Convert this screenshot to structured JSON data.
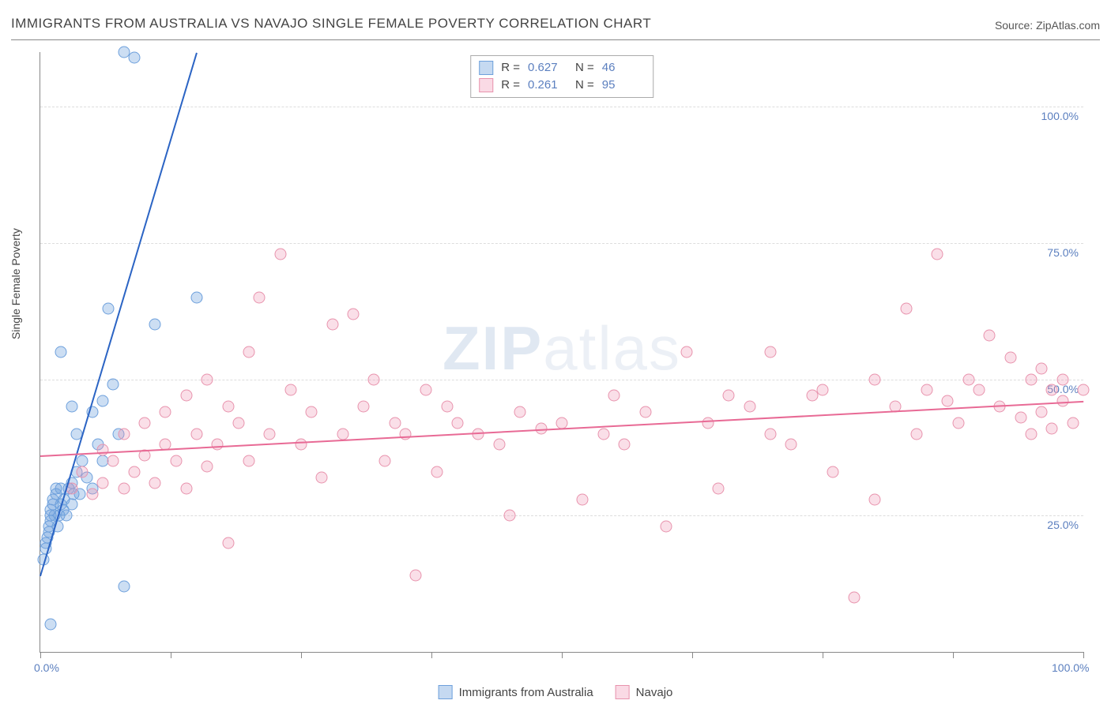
{
  "title": "IMMIGRANTS FROM AUSTRALIA VS NAVAJO SINGLE FEMALE POVERTY CORRELATION CHART",
  "source_label": "Source: ",
  "source_value": "ZipAtlas.com",
  "watermark": {
    "part1": "ZIP",
    "part2": "atlas"
  },
  "chart": {
    "type": "scatter",
    "background_color": "#ffffff",
    "grid_color": "#dddddd",
    "axis_color": "#888888",
    "xlim": [
      0,
      100
    ],
    "ylim": [
      0,
      110
    ],
    "y_gridlines": [
      25,
      50,
      75,
      100
    ],
    "y_tick_labels": [
      "25.0%",
      "50.0%",
      "75.0%",
      "100.0%"
    ],
    "x_ticks": [
      0,
      12.5,
      25,
      37.5,
      50,
      62.5,
      75,
      87.5,
      100
    ],
    "x_tick_labels": {
      "0": "0.0%",
      "100": "100.0%"
    },
    "y_axis_title": "Single Female Poverty",
    "label_color": "#5b7fbf",
    "label_fontsize": 14,
    "marker_radius": 7.5,
    "marker_opacity": 0.35,
    "series": [
      {
        "name": "Immigrants from Australia",
        "color_fill": "rgba(110,160,220,0.35)",
        "color_stroke": "#6ea0dc",
        "regression_color": "#2b64c4",
        "R": 0.627,
        "N": 46,
        "regression": {
          "x1": 0,
          "y1": 14,
          "x2": 15,
          "y2": 110
        },
        "points": [
          [
            0.3,
            17
          ],
          [
            0.5,
            19
          ],
          [
            0.5,
            20
          ],
          [
            0.7,
            21
          ],
          [
            0.8,
            22
          ],
          [
            0.8,
            23
          ],
          [
            1.0,
            24
          ],
          [
            1.0,
            25
          ],
          [
            1.0,
            26
          ],
          [
            1.2,
            27
          ],
          [
            1.2,
            28
          ],
          [
            1.4,
            25
          ],
          [
            1.5,
            29
          ],
          [
            1.5,
            30
          ],
          [
            1.7,
            23
          ],
          [
            1.8,
            25
          ],
          [
            2.0,
            27
          ],
          [
            2.0,
            30
          ],
          [
            2.2,
            26
          ],
          [
            2.3,
            28
          ],
          [
            2.5,
            25
          ],
          [
            2.7,
            30
          ],
          [
            3.0,
            27
          ],
          [
            3.0,
            31
          ],
          [
            3.2,
            29
          ],
          [
            3.5,
            33
          ],
          [
            3.5,
            40
          ],
          [
            3.8,
            29
          ],
          [
            4.0,
            35
          ],
          [
            4.5,
            32
          ],
          [
            5.0,
            30
          ],
          [
            5.0,
            44
          ],
          [
            5.5,
            38
          ],
          [
            6.0,
            35
          ],
          [
            6.0,
            46
          ],
          [
            6.5,
            63
          ],
          [
            7.0,
            49
          ],
          [
            7.5,
            40
          ],
          [
            8.0,
            12
          ],
          [
            2.0,
            55
          ],
          [
            3.0,
            45
          ],
          [
            1.0,
            5
          ],
          [
            11,
            60
          ],
          [
            15,
            65
          ],
          [
            8,
            110
          ],
          [
            9,
            109
          ]
        ]
      },
      {
        "name": "Navajo",
        "color_fill": "rgba(240,150,180,0.30)",
        "color_stroke": "#e893ad",
        "regression_color": "#e86a95",
        "R": 0.261,
        "N": 95,
        "regression": {
          "x1": 0,
          "y1": 36,
          "x2": 100,
          "y2": 46
        },
        "points": [
          [
            3,
            30
          ],
          [
            4,
            33
          ],
          [
            5,
            29
          ],
          [
            6,
            31
          ],
          [
            6,
            37
          ],
          [
            7,
            35
          ],
          [
            8,
            30
          ],
          [
            8,
            40
          ],
          [
            9,
            33
          ],
          [
            10,
            36
          ],
          [
            10,
            42
          ],
          [
            11,
            31
          ],
          [
            12,
            38
          ],
          [
            12,
            44
          ],
          [
            13,
            35
          ],
          [
            14,
            30
          ],
          [
            14,
            47
          ],
          [
            15,
            40
          ],
          [
            16,
            34
          ],
          [
            16,
            50
          ],
          [
            17,
            38
          ],
          [
            18,
            20
          ],
          [
            18,
            45
          ],
          [
            19,
            42
          ],
          [
            20,
            35
          ],
          [
            20,
            55
          ],
          [
            21,
            65
          ],
          [
            22,
            40
          ],
          [
            23,
            73
          ],
          [
            24,
            48
          ],
          [
            25,
            38
          ],
          [
            26,
            44
          ],
          [
            27,
            32
          ],
          [
            28,
            60
          ],
          [
            29,
            40
          ],
          [
            30,
            62
          ],
          [
            31,
            45
          ],
          [
            32,
            50
          ],
          [
            33,
            35
          ],
          [
            34,
            42
          ],
          [
            35,
            40
          ],
          [
            36,
            14
          ],
          [
            37,
            48
          ],
          [
            38,
            33
          ],
          [
            39,
            45
          ],
          [
            40,
            42
          ],
          [
            42,
            40
          ],
          [
            44,
            38
          ],
          [
            45,
            25
          ],
          [
            46,
            44
          ],
          [
            48,
            41
          ],
          [
            50,
            42
          ],
          [
            52,
            28
          ],
          [
            54,
            40
          ],
          [
            55,
            47
          ],
          [
            56,
            38
          ],
          [
            58,
            44
          ],
          [
            60,
            23
          ],
          [
            62,
            55
          ],
          [
            64,
            42
          ],
          [
            65,
            30
          ],
          [
            66,
            47
          ],
          [
            68,
            45
          ],
          [
            70,
            40
          ],
          [
            70,
            55
          ],
          [
            72,
            38
          ],
          [
            74,
            47
          ],
          [
            75,
            48
          ],
          [
            76,
            33
          ],
          [
            78,
            10
          ],
          [
            80,
            28
          ],
          [
            80,
            50
          ],
          [
            82,
            45
          ],
          [
            83,
            63
          ],
          [
            84,
            40
          ],
          [
            85,
            48
          ],
          [
            86,
            73
          ],
          [
            87,
            46
          ],
          [
            88,
            42
          ],
          [
            89,
            50
          ],
          [
            90,
            48
          ],
          [
            91,
            58
          ],
          [
            92,
            45
          ],
          [
            93,
            54
          ],
          [
            94,
            43
          ],
          [
            95,
            50
          ],
          [
            95,
            40
          ],
          [
            96,
            52
          ],
          [
            96,
            44
          ],
          [
            97,
            48
          ],
          [
            97,
            41
          ],
          [
            98,
            50
          ],
          [
            98,
            46
          ],
          [
            99,
            42
          ],
          [
            100,
            48
          ]
        ]
      }
    ]
  },
  "r_legend": {
    "r_label": "R =",
    "n_label": "N =",
    "rows": [
      {
        "fill": "rgba(110,160,220,0.4)",
        "stroke": "#6ea0dc",
        "r": "0.627",
        "n": "46"
      },
      {
        "fill": "rgba(240,150,180,0.35)",
        "stroke": "#e893ad",
        "r": "0.261",
        "n": "95"
      }
    ]
  },
  "bottom_legend": [
    {
      "fill": "rgba(110,160,220,0.4)",
      "stroke": "#6ea0dc",
      "label": "Immigrants from Australia"
    },
    {
      "fill": "rgba(240,150,180,0.35)",
      "stroke": "#e893ad",
      "label": "Navajo"
    }
  ]
}
